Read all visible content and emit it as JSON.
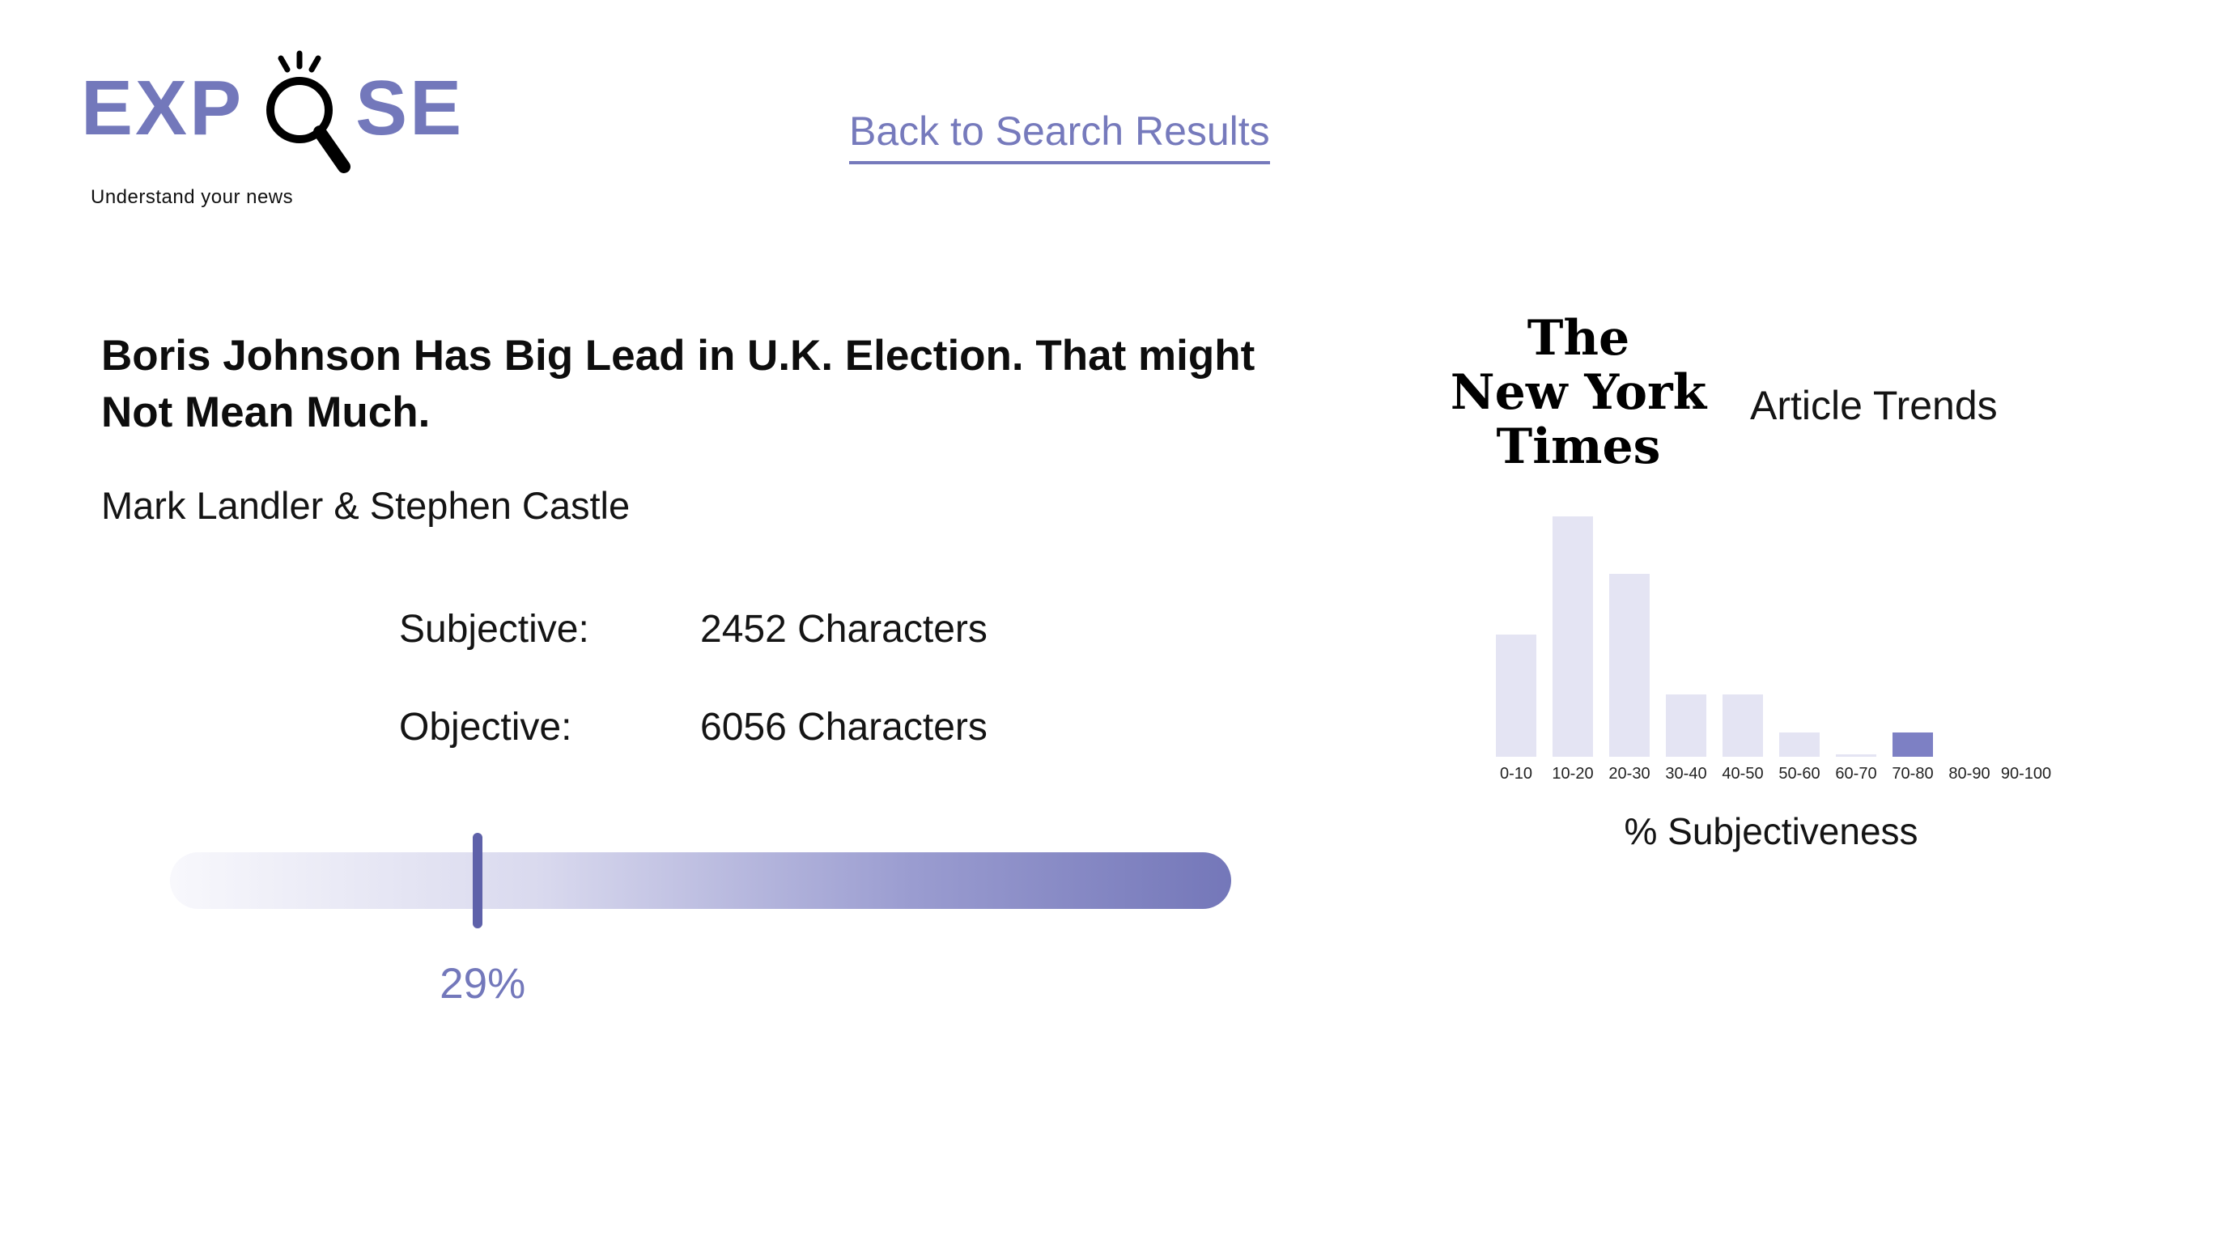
{
  "brand": {
    "logo_prefix": "EXP",
    "logo_suffix": "SE",
    "tagline": "Understand your news"
  },
  "nav": {
    "back_link": "Back to Search Results"
  },
  "article": {
    "title": "Boris Johnson Has Big Lead in U.K. Election. That might Not Mean Much.",
    "authors": "Mark Landler & Stephen Castle",
    "stats": [
      {
        "label": "Subjective:",
        "value": "2452 Characters"
      },
      {
        "label": "Objective:",
        "value": "6056 Characters"
      }
    ],
    "subjectivity_percent": 29,
    "subjectivity_label": "29%"
  },
  "trends": {
    "source_logo_lines": [
      "The",
      "New York",
      "Times"
    ],
    "title": "Article Trends",
    "xlabel": "% Subjectiveness"
  },
  "chart_data": {
    "type": "bar",
    "title": "Article Trends",
    "categories": [
      "0-10",
      "10-20",
      "20-30",
      "30-40",
      "40-50",
      "50-60",
      "60-70",
      "70-80",
      "80-90",
      "90-100"
    ],
    "values": [
      51,
      100,
      76,
      26,
      26,
      10,
      1,
      10,
      0,
      0
    ],
    "value_note": "relative bar heights, % of tallest bar",
    "xlabel": "% Subjectiveness",
    "ylabel": "",
    "highlight_index": 7,
    "bar_color": "#e4e4f3",
    "highlight_color": "#7d80c4",
    "legend": "none",
    "grid": false
  },
  "colors": {
    "accent": "#7378bb",
    "marker": "#5e61a9",
    "meter_gradient_start": "#f8f8fc",
    "meter_gradient_end": "#7477b9"
  }
}
